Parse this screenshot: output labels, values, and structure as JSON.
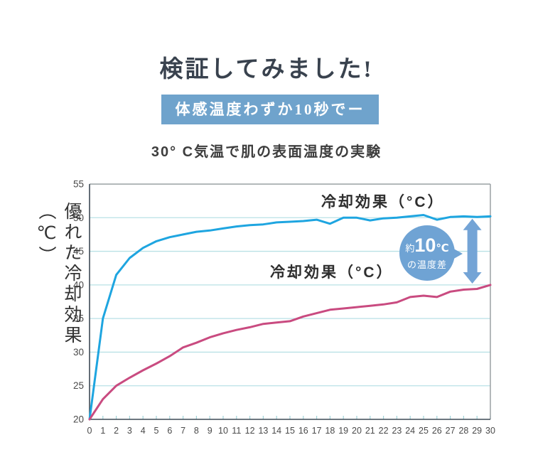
{
  "header": {
    "title": "検証してみました!",
    "badge": "体感温度わずか10秒でー"
  },
  "subtitle": "30° C気温で肌の表面温度の実験",
  "chart_data": {
    "type": "line",
    "title": "30° C気温で肌の表面温度の実験",
    "xlabel": "",
    "ylabel": "優れた冷却効果（℃）",
    "xlim": [
      0,
      30
    ],
    "ylim": [
      20,
      55
    ],
    "x_ticks": [
      0,
      1,
      2,
      3,
      4,
      5,
      6,
      7,
      8,
      9,
      10,
      11,
      12,
      13,
      14,
      15,
      16,
      17,
      18,
      19,
      20,
      21,
      22,
      23,
      24,
      25,
      26,
      27,
      28,
      29,
      30
    ],
    "y_ticks": [
      20,
      25,
      30,
      35,
      40,
      45,
      50,
      55
    ],
    "grid": "horizontal",
    "legend_position": "inline-labels",
    "x": [
      0,
      1,
      2,
      3,
      4,
      5,
      6,
      7,
      8,
      9,
      10,
      11,
      12,
      13,
      14,
      15,
      16,
      17,
      18,
      19,
      20,
      21,
      22,
      23,
      24,
      25,
      26,
      27,
      28,
      29,
      30
    ],
    "series": [
      {
        "name": "冷却効果（°C）",
        "color": "#1ea5e0",
        "values": [
          20,
          35,
          41.5,
          44,
          45.5,
          46.5,
          47.1,
          47.5,
          47.9,
          48.1,
          48.4,
          48.7,
          48.9,
          49,
          49.3,
          49.4,
          49.5,
          49.7,
          49.1,
          50,
          50,
          49.6,
          49.9,
          50,
          50.2,
          50.4,
          49.7,
          50.1,
          50.2,
          50.1,
          50.2
        ]
      },
      {
        "name": "冷却効果（°C）",
        "color": "#c94b80",
        "values": [
          20,
          23,
          25,
          26.2,
          27.3,
          28.3,
          29.4,
          30.7,
          31.4,
          32.2,
          32.8,
          33.3,
          33.7,
          34.2,
          34.4,
          34.6,
          35.3,
          35.8,
          36.3,
          36.5,
          36.7,
          36.9,
          37.1,
          37.4,
          38.2,
          38.4,
          38.2,
          39,
          39.3,
          39.4,
          40
        ]
      }
    ],
    "annotation": {
      "bubble": {
        "prefix": "約",
        "value": "10",
        "unit": "℃",
        "line2": "の温度差",
        "bg": "#6fa3d4",
        "text_color": "#ffffff"
      },
      "arrow": {
        "x": 28.65,
        "y_top": 49.85,
        "y_bottom": 40.2,
        "color": "#74a4d6"
      }
    },
    "colors": {
      "grid": "#b9e1e6",
      "axis_dark": "#3d4a55",
      "axis_light": "#9aa0a4",
      "tick": "#9ed3d8",
      "tick_label": "#4a4a4a",
      "badge_bg": "#6fa3cc",
      "title_text": "#39424e"
    }
  }
}
